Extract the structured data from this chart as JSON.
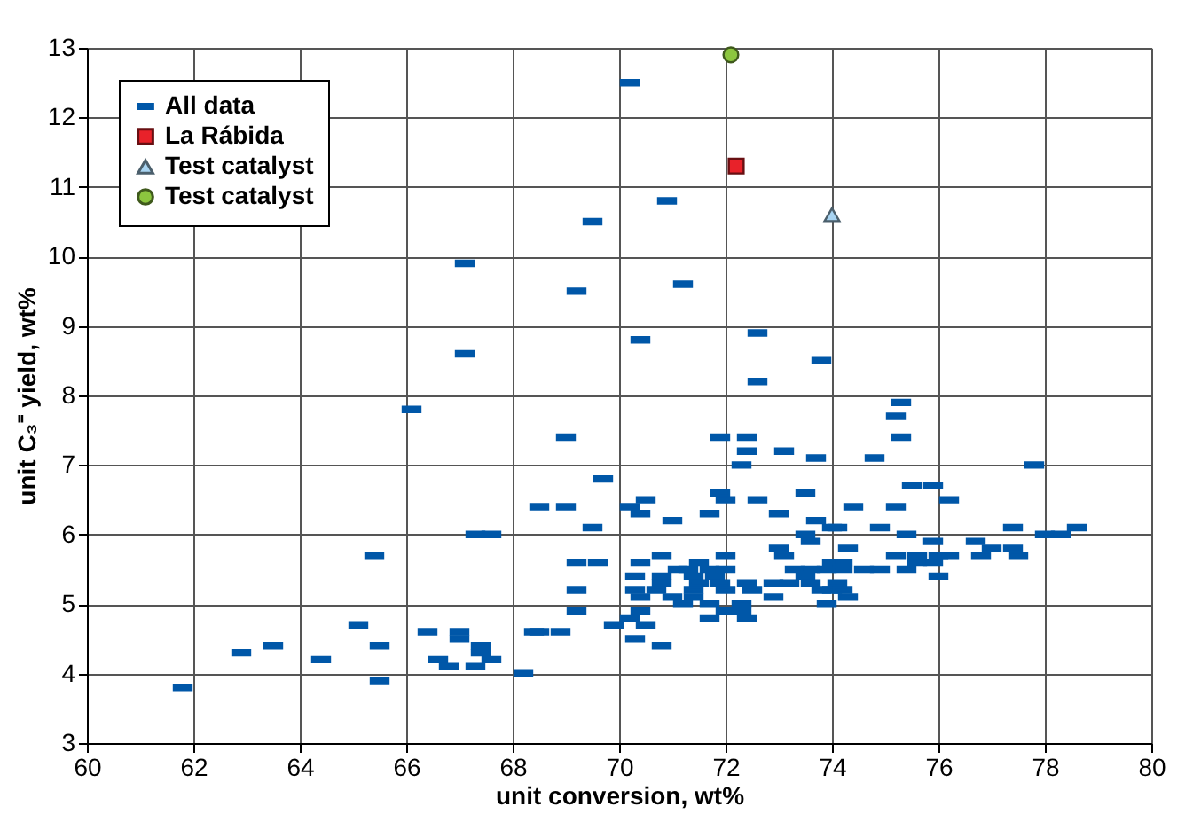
{
  "chart_data": {
    "type": "scatter",
    "xlabel": "unit conversion, wt%",
    "ylabel": "unit C₃⁼ yield, wt%",
    "xlim": [
      60,
      80
    ],
    "xticks": [
      60,
      62,
      64,
      66,
      68,
      70,
      72,
      74,
      76,
      78,
      80
    ],
    "ylim": [
      3,
      13
    ],
    "yticks": [
      3,
      4,
      5,
      6,
      7,
      8,
      9,
      10,
      11,
      12,
      13
    ],
    "grid": true,
    "legend": "top left",
    "series": [
      {
        "name": "All data",
        "color": "#0057a8",
        "x": [
          70.2,
          70.9,
          71.2,
          70.4,
          72.6,
          73.8,
          72.6,
          69.5,
          67.1,
          69.2,
          67.1,
          66.1,
          67.3,
          67.6,
          65.4,
          65.1,
          66.4,
          67.0,
          67.0,
          63.5,
          62.9,
          65.5,
          67.4,
          67.4,
          64.4,
          66.6,
          67.6,
          66.8,
          67.3,
          68.2,
          61.8,
          65.5,
          68.4,
          69.0,
          71.9,
          72.4,
          72.4,
          73.1,
          73.7,
          72.3,
          69.7,
          68.5,
          69.0,
          70.5,
          70.2,
          70.4,
          71.9,
          72.0,
          72.6,
          73.5,
          71.0,
          71.7,
          73.0,
          73.7,
          69.5,
          73.5,
          73.6,
          73.0,
          73.1,
          69.2,
          69.6,
          70.4,
          70.8,
          71.5,
          72.0,
          71.1,
          71.3,
          71.7,
          72.0,
          70.3,
          70.8,
          71.4,
          71.8,
          70.8,
          71.5,
          71.9,
          72.4,
          69.2,
          70.3,
          70.7,
          71.4,
          72.0,
          72.5,
          70.4,
          71.0,
          71.4,
          71.2,
          71.7,
          72.3,
          69.2,
          70.4,
          72.0,
          72.3,
          70.2,
          71.7,
          72.4,
          69.9,
          70.5,
          68.5,
          68.9,
          70.3,
          70.8,
          73.3,
          73.6,
          73.9,
          73.5,
          72.9,
          73.2,
          73.6,
          72.9,
          73.8,
          73.9,
          74.0,
          74.0,
          75.3,
          75.2,
          75.3,
          74.8,
          77.8,
          75.5,
          75.9,
          76.2,
          74.4,
          75.2,
          74.1,
          74.9,
          77.4,
          78.6,
          75.4,
          78.0,
          78.3,
          75.9,
          76.7,
          74.3,
          77.0,
          77.4,
          75.2,
          75.6,
          76.0,
          76.2,
          76.8,
          77.5,
          74.2,
          75.6,
          75.9,
          74.2,
          74.6,
          74.9,
          75.4,
          76.0,
          74.1,
          74.0,
          74.2,
          74.3
        ],
        "values": [
          12.5,
          10.8,
          9.6,
          8.8,
          8.9,
          8.5,
          8.2,
          10.5,
          9.9,
          9.5,
          8.6,
          7.8,
          6.0,
          6.0,
          5.7,
          4.7,
          4.6,
          4.6,
          4.5,
          4.4,
          4.3,
          4.4,
          4.4,
          4.3,
          4.2,
          4.2,
          4.2,
          4.1,
          4.1,
          4.0,
          3.8,
          3.9,
          4.6,
          7.4,
          7.4,
          7.4,
          7.2,
          7.2,
          7.1,
          7.0,
          6.8,
          6.4,
          6.4,
          6.5,
          6.4,
          6.3,
          6.6,
          6.5,
          6.5,
          6.6,
          6.2,
          6.3,
          6.3,
          6.2,
          6.1,
          6.0,
          5.9,
          5.8,
          5.7,
          5.6,
          5.6,
          5.6,
          5.7,
          5.6,
          5.7,
          5.5,
          5.5,
          5.5,
          5.5,
          5.4,
          5.4,
          5.4,
          5.4,
          5.3,
          5.3,
          5.3,
          5.3,
          5.2,
          5.2,
          5.2,
          5.2,
          5.2,
          5.2,
          5.1,
          5.1,
          5.1,
          5.0,
          5.0,
          5.0,
          4.9,
          4.9,
          4.9,
          4.9,
          4.8,
          4.8,
          4.8,
          4.7,
          4.7,
          4.6,
          4.6,
          4.5,
          4.4,
          5.5,
          5.5,
          5.5,
          5.4,
          5.3,
          5.3,
          5.3,
          5.1,
          5.2,
          5.0,
          6.1,
          5.6,
          7.9,
          7.7,
          7.4,
          7.1,
          7.0,
          6.7,
          6.7,
          6.5,
          6.4,
          6.4,
          6.1,
          6.1,
          6.1,
          6.1,
          6.0,
          6.0,
          6.0,
          5.9,
          5.9,
          5.8,
          5.8,
          5.8,
          5.7,
          5.7,
          5.7,
          5.7,
          5.7,
          5.7,
          5.6,
          5.6,
          5.6,
          5.5,
          5.5,
          5.5,
          5.5,
          5.4,
          5.3,
          5.2,
          5.2,
          5.1
        ]
      },
      {
        "name": "La Rábida",
        "color": "#e8222a",
        "marker": "square",
        "x": [
          72.2
        ],
        "values": [
          11.3
        ]
      },
      {
        "name": "Test catalyst",
        "color": "#a8d4f2",
        "marker": "triangle",
        "x": [
          74.0
        ],
        "values": [
          10.6
        ]
      },
      {
        "name": "Test catalyst",
        "color": "#8cc63f",
        "marker": "circle",
        "x": [
          72.1
        ],
        "values": [
          12.9
        ]
      }
    ]
  }
}
